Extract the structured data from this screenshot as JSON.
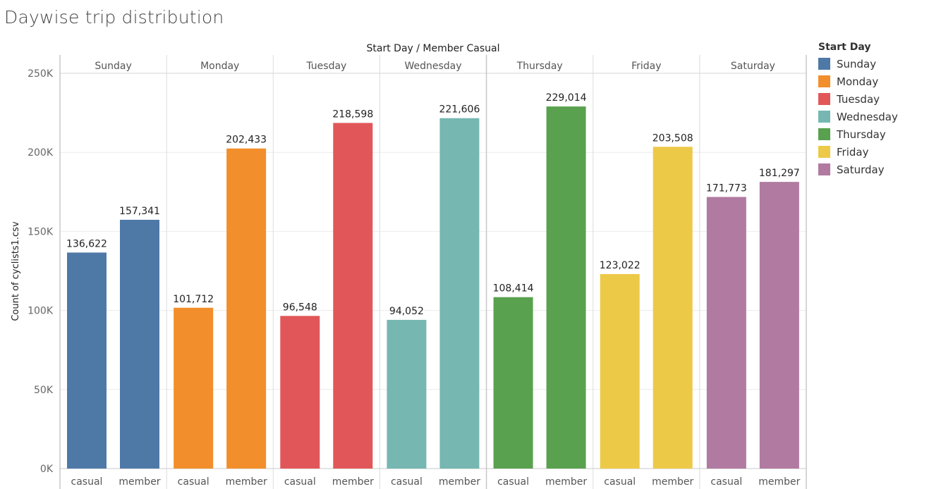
{
  "title": "Daywise trip distribution",
  "chart_data": {
    "type": "bar",
    "header": "Start Day  /  Member Casual",
    "ylabel": "Count of cyclists1.csv",
    "ylim": [
      0,
      250000
    ],
    "yticks": [
      0,
      50000,
      100000,
      150000,
      200000,
      250000
    ],
    "ytick_labels": [
      "0K",
      "50K",
      "100K",
      "150K",
      "200K",
      "250K"
    ],
    "groups": [
      {
        "name": "Sunday",
        "color": "#4e79a7",
        "bars": [
          {
            "label": "casual",
            "value": 136622,
            "text": "136,622"
          },
          {
            "label": "member",
            "value": 157341,
            "text": "157,341"
          }
        ]
      },
      {
        "name": "Monday",
        "color": "#f28e2b",
        "bars": [
          {
            "label": "casual",
            "value": 101712,
            "text": "101,712"
          },
          {
            "label": "member",
            "value": 202433,
            "text": "202,433"
          }
        ]
      },
      {
        "name": "Tuesday",
        "color": "#e15759",
        "bars": [
          {
            "label": "casual",
            "value": 96548,
            "text": "96,548"
          },
          {
            "label": "member",
            "value": 218598,
            "text": "218,598"
          }
        ]
      },
      {
        "name": "Wednesday",
        "color": "#76b7b2",
        "bars": [
          {
            "label": "casual",
            "value": 94052,
            "text": "94,052"
          },
          {
            "label": "member",
            "value": 221606,
            "text": "221,606"
          }
        ]
      },
      {
        "name": "Thursday",
        "color": "#59a14f",
        "bars": [
          {
            "label": "casual",
            "value": 108414,
            "text": "108,414"
          },
          {
            "label": "member",
            "value": 229014,
            "text": "229,014"
          }
        ]
      },
      {
        "name": "Friday",
        "color": "#edc948",
        "bars": [
          {
            "label": "casual",
            "value": 123022,
            "text": "123,022"
          },
          {
            "label": "member",
            "value": 203508,
            "text": "203,508"
          }
        ]
      },
      {
        "name": "Saturday",
        "color": "#b07aa1",
        "bars": [
          {
            "label": "casual",
            "value": 171773,
            "text": "171,773"
          },
          {
            "label": "member",
            "value": 181297,
            "text": "181,297"
          }
        ]
      }
    ],
    "legend": {
      "title": "Start Day",
      "placement": "right",
      "items": [
        {
          "label": "Sunday",
          "color": "#4e79a7"
        },
        {
          "label": "Monday",
          "color": "#f28e2b"
        },
        {
          "label": "Tuesday",
          "color": "#e15759"
        },
        {
          "label": "Wednesday",
          "color": "#76b7b2"
        },
        {
          "label": "Thursday",
          "color": "#59a14f"
        },
        {
          "label": "Friday",
          "color": "#edc948"
        },
        {
          "label": "Saturday",
          "color": "#b07aa1"
        }
      ]
    }
  }
}
